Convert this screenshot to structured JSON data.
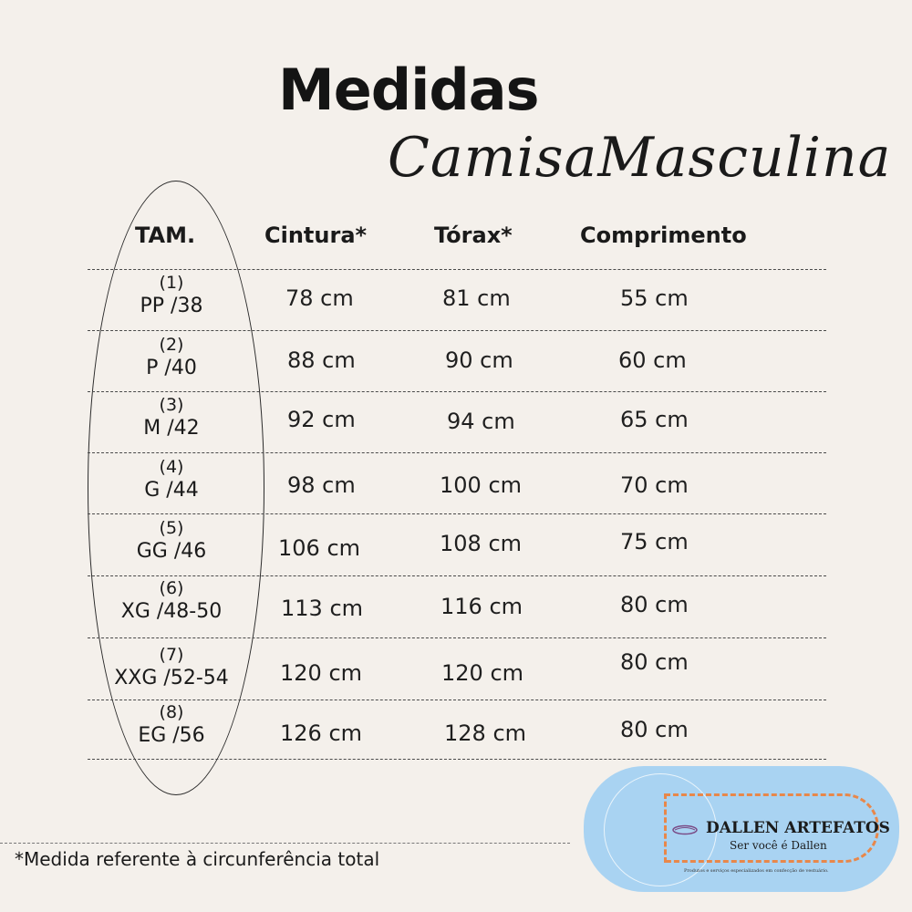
{
  "title": "Medidas",
  "subtitle": "CamisaMasculina",
  "headers": {
    "size": "TAM.",
    "waist": "Cintura*",
    "chest": "Tórax*",
    "length": "Comprimento"
  },
  "rows": [
    {
      "num": "(1)",
      "size": "PP /38",
      "waist": "78 cm",
      "chest": "81 cm",
      "length": "55 cm"
    },
    {
      "num": "(2)",
      "size": "P /40",
      "waist": "88 cm",
      "chest": "90 cm",
      "length": "60 cm"
    },
    {
      "num": "(3)",
      "size": "M /42",
      "waist": "92 cm",
      "chest": "94 cm",
      "length": "65 cm"
    },
    {
      "num": "(4)",
      "size": "G /44",
      "waist": "98 cm",
      "chest": "100 cm",
      "length": "70 cm"
    },
    {
      "num": "(5)",
      "size": "GG /46",
      "waist": "106 cm",
      "chest": "108 cm",
      "length": "75 cm"
    },
    {
      "num": "(6)",
      "size": "XG /48-50",
      "waist": "113 cm",
      "chest": "116 cm",
      "length": "80 cm"
    },
    {
      "num": "(7)",
      "size": "XXG /52-54",
      "waist": "120 cm",
      "chest": "120 cm",
      "length": "80 cm"
    },
    {
      "num": "(8)",
      "size": "EG /56",
      "waist": "126 cm",
      "chest": "128 cm",
      "length": "80 cm"
    }
  ],
  "footnote": "*Medida referente à circunferência total",
  "logo": {
    "name": "DALLEN ARTEFATOS",
    "tagline": "Ser você é Dallen",
    "small_text": "Produtos e serviços especializados em confecção de vestuário."
  }
}
